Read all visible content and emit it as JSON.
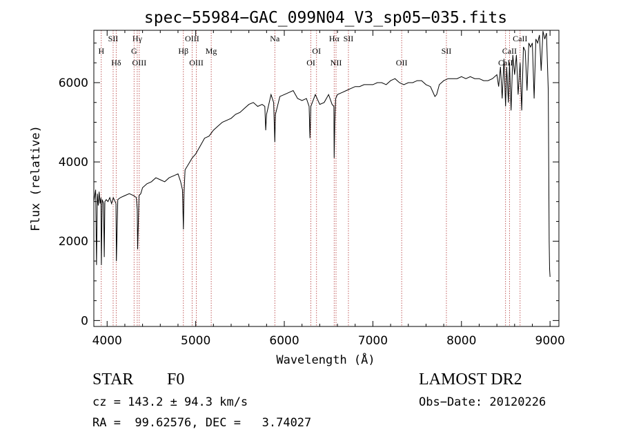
{
  "chart_data": {
    "type": "line",
    "title": "spec−55984−GAC_099N04_V3_sp05−035.fits",
    "xlabel": "Wavelength (Å)",
    "ylabel": "Flux (relative)",
    "xlim": [
      3850,
      9100
    ],
    "ylim": [
      -150,
      7320
    ],
    "xticks": [
      4000,
      5000,
      6000,
      7000,
      8000,
      9000
    ],
    "yticks": [
      0,
      2000,
      4000,
      6000
    ],
    "grid": false,
    "series": [
      {
        "name": "spectrum",
        "x": [
          3850,
          3870,
          3880,
          3890,
          3900,
          3910,
          3920,
          3930,
          3935,
          3945,
          3960,
          3968,
          3975,
          3990,
          4010,
          4030,
          4050,
          4070,
          4090,
          4100,
          4105,
          4120,
          4150,
          4200,
          4250,
          4300,
          4330,
          4340,
          4345,
          4360,
          4380,
          4400,
          4450,
          4500,
          4550,
          4600,
          4650,
          4700,
          4750,
          4800,
          4830,
          4850,
          4861,
          4868,
          4880,
          4920,
          4960,
          5000,
          5050,
          5100,
          5150,
          5200,
          5250,
          5300,
          5350,
          5400,
          5450,
          5500,
          5550,
          5600,
          5650,
          5700,
          5750,
          5780,
          5790,
          5800,
          5850,
          5880,
          5893,
          5900,
          5950,
          6000,
          6050,
          6100,
          6150,
          6200,
          6250,
          6280,
          6290,
          6300,
          6350,
          6400,
          6450,
          6500,
          6540,
          6560,
          6563,
          6570,
          6580,
          6600,
          6650,
          6700,
          6750,
          6800,
          6850,
          6900,
          6950,
          7000,
          7050,
          7100,
          7150,
          7200,
          7250,
          7300,
          7350,
          7400,
          7450,
          7500,
          7550,
          7600,
          7650,
          7700,
          7720,
          7750,
          7800,
          7850,
          7900,
          7950,
          8000,
          8050,
          8100,
          8150,
          8200,
          8250,
          8300,
          8350,
          8400,
          8420,
          8440,
          8460,
          8480,
          8498,
          8510,
          8530,
          8542,
          8560,
          8580,
          8600,
          8620,
          8640,
          8662,
          8680,
          8700,
          8720,
          8740,
          8760,
          8780,
          8800,
          8820,
          8840,
          8860,
          8880,
          8900,
          8920,
          8940,
          8960,
          8980,
          8990,
          8995,
          9000
        ],
        "y": [
          3000,
          3300,
          1400,
          3200,
          2900,
          3250,
          2950,
          3100,
          1400,
          3050,
          2950,
          1600,
          3000,
          3050,
          3000,
          3100,
          2950,
          3100,
          3000,
          2950,
          1500,
          3050,
          3100,
          3150,
          3200,
          3150,
          3100,
          2800,
          1800,
          3150,
          3200,
          3350,
          3450,
          3500,
          3600,
          3550,
          3500,
          3600,
          3650,
          3700,
          3500,
          3300,
          2300,
          3200,
          3800,
          3950,
          4100,
          4200,
          4400,
          4600,
          4650,
          4800,
          4900,
          5000,
          5050,
          5100,
          5200,
          5250,
          5350,
          5450,
          5500,
          5400,
          5450,
          5400,
          4800,
          5200,
          5700,
          5500,
          4500,
          5200,
          5650,
          5700,
          5750,
          5800,
          5600,
          5550,
          5600,
          5400,
          4600,
          5400,
          5700,
          5450,
          5500,
          5700,
          5450,
          5400,
          4100,
          5000,
          5600,
          5700,
          5750,
          5800,
          5850,
          5900,
          5900,
          5950,
          5950,
          5950,
          6000,
          6000,
          5950,
          6050,
          6100,
          6000,
          5950,
          6000,
          6000,
          6050,
          6050,
          5950,
          5900,
          5650,
          5700,
          5950,
          6050,
          6100,
          6100,
          6100,
          6150,
          6100,
          6150,
          6100,
          6100,
          6050,
          6050,
          6100,
          6200,
          5900,
          6400,
          5600,
          6600,
          5400,
          6400,
          5500,
          6500,
          5300,
          6700,
          6200,
          6700,
          5700,
          6500,
          5300,
          6900,
          6800,
          5800,
          7000,
          6900,
          7000,
          5600,
          7100,
          7000,
          7200,
          6300,
          7300,
          7100,
          7250,
          5800,
          2000,
          1300,
          1100
        ]
      }
    ],
    "lines": [
      {
        "label": "H",
        "wl": 3934,
        "row": 2
      },
      {
        "label": "SII",
        "wl": 4068,
        "row": 1
      },
      {
        "label": "Hδ",
        "wl": 4102,
        "row": 3
      },
      {
        "label": "Hγ",
        "wl": 4340,
        "row": 1
      },
      {
        "label": "G",
        "wl": 4304,
        "row": 2
      },
      {
        "label": "OIII",
        "wl": 4363,
        "row": 3
      },
      {
        "label": "OIII",
        "wl": 4959,
        "row": 1
      },
      {
        "label": "Hβ",
        "wl": 4861,
        "row": 2
      },
      {
        "label": "OIII",
        "wl": 5007,
        "row": 3
      },
      {
        "label": "Mg",
        "wl": 5175,
        "row": 2
      },
      {
        "label": "Na",
        "wl": 5893,
        "row": 1
      },
      {
        "label": "OI",
        "wl": 6364,
        "row": 2
      },
      {
        "label": "OI",
        "wl": 6300,
        "row": 3
      },
      {
        "label": "Hα",
        "wl": 6563,
        "row": 1
      },
      {
        "label": "SII",
        "wl": 6724,
        "row": 1
      },
      {
        "label": "NII",
        "wl": 6584,
        "row": 3
      },
      {
        "label": "OII",
        "wl": 7325,
        "row": 3
      },
      {
        "label": "SII",
        "wl": 7830,
        "row": 2
      },
      {
        "label": "CaII",
        "wl": 8662,
        "row": 1
      },
      {
        "label": "CaII",
        "wl": 8542,
        "row": 2
      },
      {
        "label": "CaII",
        "wl": 8498,
        "row": 3
      }
    ]
  },
  "info": {
    "object_class": "STAR",
    "subclass": "F0",
    "survey": "LAMOST DR2",
    "cz": "cz = 143.2 ± 94.3 km/s",
    "obs_date": "Obs−Date: 20120226",
    "coords": "RA =  99.62576, DEC =   3.74027"
  },
  "colors": {
    "line": "#000000",
    "marker": "#b03030",
    "axis": "#000000"
  }
}
